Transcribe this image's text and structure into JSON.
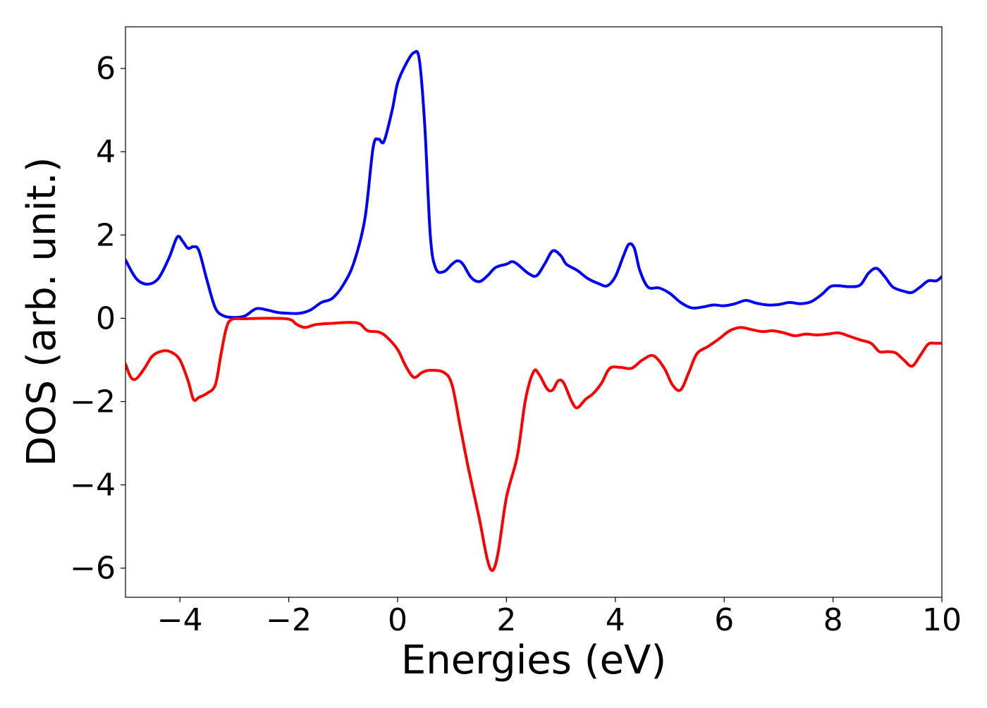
{
  "chart_data": {
    "type": "line",
    "title": "",
    "xlabel": "Energies (eV)",
    "ylabel": "DOS (arb. unit.)",
    "xlim": [
      -5,
      10
    ],
    "ylim": [
      -6.7,
      7.0
    ],
    "xticks": [
      -4,
      -2,
      0,
      2,
      4,
      6,
      8,
      10
    ],
    "yticks": [
      -6,
      -4,
      -2,
      0,
      2,
      4,
      6
    ],
    "grid": false,
    "legend": "none",
    "series": [
      {
        "color": "#0000ff",
        "points": [
          [
            -5.0,
            1.4
          ],
          [
            -4.8,
            0.95
          ],
          [
            -4.6,
            0.82
          ],
          [
            -4.4,
            0.95
          ],
          [
            -4.2,
            1.45
          ],
          [
            -4.05,
            1.95
          ],
          [
            -3.95,
            1.85
          ],
          [
            -3.85,
            1.68
          ],
          [
            -3.75,
            1.72
          ],
          [
            -3.65,
            1.62
          ],
          [
            -3.5,
            0.9
          ],
          [
            -3.35,
            0.25
          ],
          [
            -3.2,
            0.06
          ],
          [
            -3.0,
            0.02
          ],
          [
            -2.8,
            0.06
          ],
          [
            -2.6,
            0.23
          ],
          [
            -2.4,
            0.2
          ],
          [
            -2.2,
            0.14
          ],
          [
            -2.0,
            0.12
          ],
          [
            -1.8,
            0.12
          ],
          [
            -1.6,
            0.2
          ],
          [
            -1.4,
            0.38
          ],
          [
            -1.2,
            0.48
          ],
          [
            -1.0,
            0.8
          ],
          [
            -0.8,
            1.35
          ],
          [
            -0.6,
            2.4
          ],
          [
            -0.45,
            4.1
          ],
          [
            -0.35,
            4.3
          ],
          [
            -0.25,
            4.25
          ],
          [
            -0.1,
            5.0
          ],
          [
            0.0,
            5.65
          ],
          [
            0.15,
            6.1
          ],
          [
            0.3,
            6.38
          ],
          [
            0.4,
            6.2
          ],
          [
            0.5,
            4.6
          ],
          [
            0.6,
            2.0
          ],
          [
            0.7,
            1.2
          ],
          [
            0.85,
            1.12
          ],
          [
            1.0,
            1.3
          ],
          [
            1.1,
            1.38
          ],
          [
            1.2,
            1.3
          ],
          [
            1.35,
            0.98
          ],
          [
            1.5,
            0.88
          ],
          [
            1.65,
            1.02
          ],
          [
            1.8,
            1.22
          ],
          [
            2.0,
            1.3
          ],
          [
            2.1,
            1.36
          ],
          [
            2.2,
            1.3
          ],
          [
            2.4,
            1.08
          ],
          [
            2.55,
            1.02
          ],
          [
            2.7,
            1.3
          ],
          [
            2.85,
            1.62
          ],
          [
            3.0,
            1.5
          ],
          [
            3.1,
            1.3
          ],
          [
            3.3,
            1.15
          ],
          [
            3.5,
            0.95
          ],
          [
            3.7,
            0.83
          ],
          [
            3.85,
            0.78
          ],
          [
            4.0,
            1.0
          ],
          [
            4.15,
            1.5
          ],
          [
            4.25,
            1.78
          ],
          [
            4.35,
            1.68
          ],
          [
            4.45,
            1.15
          ],
          [
            4.6,
            0.75
          ],
          [
            4.8,
            0.73
          ],
          [
            5.0,
            0.6
          ],
          [
            5.2,
            0.38
          ],
          [
            5.4,
            0.25
          ],
          [
            5.6,
            0.27
          ],
          [
            5.8,
            0.32
          ],
          [
            6.0,
            0.3
          ],
          [
            6.2,
            0.35
          ],
          [
            6.4,
            0.43
          ],
          [
            6.6,
            0.36
          ],
          [
            6.8,
            0.32
          ],
          [
            7.0,
            0.33
          ],
          [
            7.2,
            0.38
          ],
          [
            7.4,
            0.35
          ],
          [
            7.6,
            0.4
          ],
          [
            7.8,
            0.58
          ],
          [
            7.95,
            0.76
          ],
          [
            8.1,
            0.78
          ],
          [
            8.3,
            0.76
          ],
          [
            8.5,
            0.8
          ],
          [
            8.65,
            1.08
          ],
          [
            8.8,
            1.2
          ],
          [
            8.95,
            1.0
          ],
          [
            9.1,
            0.75
          ],
          [
            9.3,
            0.65
          ],
          [
            9.45,
            0.62
          ],
          [
            9.6,
            0.75
          ],
          [
            9.75,
            0.9
          ],
          [
            9.9,
            0.9
          ],
          [
            10.0,
            1.0
          ]
        ]
      },
      {
        "color": "#ff0000",
        "points": [
          [
            -5.0,
            -1.1
          ],
          [
            -4.9,
            -1.42
          ],
          [
            -4.8,
            -1.45
          ],
          [
            -4.65,
            -1.2
          ],
          [
            -4.5,
            -0.9
          ],
          [
            -4.3,
            -0.78
          ],
          [
            -4.15,
            -0.82
          ],
          [
            -4.0,
            -1.0
          ],
          [
            -3.85,
            -1.5
          ],
          [
            -3.75,
            -1.95
          ],
          [
            -3.65,
            -1.9
          ],
          [
            -3.5,
            -1.8
          ],
          [
            -3.35,
            -1.6
          ],
          [
            -3.25,
            -0.9
          ],
          [
            -3.15,
            -0.25
          ],
          [
            -3.05,
            -0.03
          ],
          [
            -2.8,
            -0.01
          ],
          [
            -2.4,
            0.0
          ],
          [
            -2.0,
            -0.02
          ],
          [
            -1.85,
            -0.15
          ],
          [
            -1.7,
            -0.22
          ],
          [
            -1.5,
            -0.15
          ],
          [
            -1.2,
            -0.12
          ],
          [
            -0.9,
            -0.1
          ],
          [
            -0.7,
            -0.13
          ],
          [
            -0.55,
            -0.3
          ],
          [
            -0.35,
            -0.33
          ],
          [
            -0.2,
            -0.45
          ],
          [
            0.0,
            -0.75
          ],
          [
            0.15,
            -1.15
          ],
          [
            0.3,
            -1.42
          ],
          [
            0.45,
            -1.3
          ],
          [
            0.6,
            -1.25
          ],
          [
            0.85,
            -1.3
          ],
          [
            1.0,
            -1.6
          ],
          [
            1.15,
            -2.6
          ],
          [
            1.3,
            -3.6
          ],
          [
            1.5,
            -4.8
          ],
          [
            1.65,
            -5.8
          ],
          [
            1.75,
            -6.05
          ],
          [
            1.85,
            -5.6
          ],
          [
            2.0,
            -4.3
          ],
          [
            2.2,
            -3.3
          ],
          [
            2.35,
            -1.95
          ],
          [
            2.5,
            -1.28
          ],
          [
            2.6,
            -1.35
          ],
          [
            2.75,
            -1.7
          ],
          [
            2.85,
            -1.72
          ],
          [
            2.95,
            -1.5
          ],
          [
            3.05,
            -1.55
          ],
          [
            3.2,
            -2.0
          ],
          [
            3.3,
            -2.15
          ],
          [
            3.45,
            -1.95
          ],
          [
            3.6,
            -1.8
          ],
          [
            3.75,
            -1.55
          ],
          [
            3.9,
            -1.2
          ],
          [
            4.1,
            -1.18
          ],
          [
            4.3,
            -1.2
          ],
          [
            4.5,
            -1.0
          ],
          [
            4.7,
            -0.9
          ],
          [
            4.9,
            -1.2
          ],
          [
            5.05,
            -1.6
          ],
          [
            5.2,
            -1.72
          ],
          [
            5.35,
            -1.3
          ],
          [
            5.5,
            -0.85
          ],
          [
            5.7,
            -0.68
          ],
          [
            5.9,
            -0.5
          ],
          [
            6.1,
            -0.3
          ],
          [
            6.3,
            -0.22
          ],
          [
            6.5,
            -0.27
          ],
          [
            6.7,
            -0.32
          ],
          [
            6.9,
            -0.3
          ],
          [
            7.1,
            -0.35
          ],
          [
            7.3,
            -0.42
          ],
          [
            7.5,
            -0.38
          ],
          [
            7.7,
            -0.4
          ],
          [
            7.9,
            -0.38
          ],
          [
            8.1,
            -0.35
          ],
          [
            8.3,
            -0.43
          ],
          [
            8.5,
            -0.52
          ],
          [
            8.7,
            -0.6
          ],
          [
            8.85,
            -0.8
          ],
          [
            9.0,
            -0.8
          ],
          [
            9.15,
            -0.83
          ],
          [
            9.3,
            -1.0
          ],
          [
            9.45,
            -1.15
          ],
          [
            9.6,
            -0.9
          ],
          [
            9.75,
            -0.62
          ],
          [
            9.9,
            -0.6
          ],
          [
            10.0,
            -0.6
          ]
        ]
      }
    ]
  }
}
